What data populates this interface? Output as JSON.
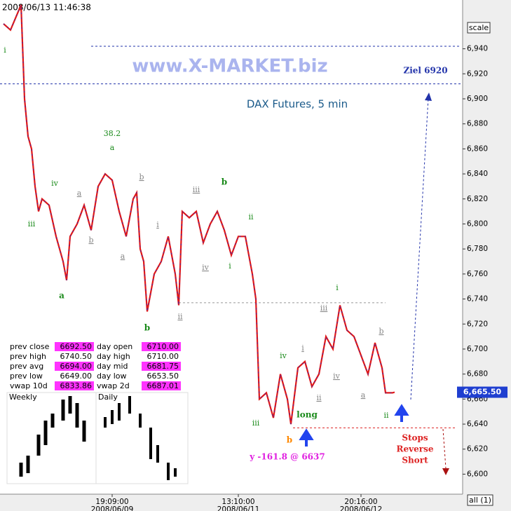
{
  "chart_data": {
    "type": "line",
    "title": "2008/06/13 11:46:38",
    "watermark": "www.X-MARKET.biz",
    "subtitle": "DAX Futures, 5 min",
    "target_label": "Ziel 6920",
    "scale_button": "scale",
    "all_button": "all (1)",
    "last_price_label": "6,665.50",
    "last_price": 6665.5,
    "stops_note": [
      "Stops",
      "Reverse",
      "Short"
    ],
    "projection_note": "y -161.8 @ 6637",
    "series": [
      {
        "name": "DAX Futures",
        "color": "#e01818",
        "x": [
          1,
          3,
          6,
          7,
          8,
          9,
          10,
          11,
          12,
          14,
          16,
          18,
          19,
          20,
          22,
          24,
          26,
          28,
          30,
          32,
          34,
          36,
          38,
          39,
          40,
          41,
          42,
          44,
          46,
          48,
          50,
          51,
          52,
          54,
          56,
          58,
          60,
          62,
          64,
          66,
          68,
          70,
          72,
          73,
          74,
          76,
          78,
          80,
          82,
          83,
          85,
          87,
          89,
          91,
          93,
          95,
          97,
          99,
          101,
          103,
          105,
          107,
          109,
          110,
          112,
          112.6
        ],
        "values": [
          6960,
          6955,
          6975,
          6900,
          6870,
          6860,
          6830,
          6810,
          6820,
          6815,
          6790,
          6770,
          6755,
          6790,
          6800,
          6815,
          6795,
          6830,
          6840,
          6835,
          6810,
          6790,
          6820,
          6825,
          6780,
          6770,
          6730,
          6760,
          6770,
          6790,
          6760,
          6735,
          6810,
          6805,
          6810,
          6785,
          6800,
          6810,
          6795,
          6775,
          6790,
          6790,
          6760,
          6740,
          6660,
          6665,
          6645,
          6680,
          6660,
          6640,
          6685,
          6690,
          6670,
          6680,
          6710,
          6700,
          6735,
          6715,
          6710,
          6695,
          6680,
          6705,
          6685,
          6665,
          6665,
          6665.5
        ]
      }
    ],
    "levels": [
      {
        "value": 6942,
        "color": "#2233aa"
      },
      {
        "value": 6912,
        "color": "#2233aa"
      },
      {
        "value": 6737,
        "color": "#999999"
      },
      {
        "value": 6637,
        "color": "#dd2222"
      }
    ],
    "annotations": [
      "i",
      "iv",
      "iii",
      "a",
      "a",
      "b",
      "38.2",
      "a",
      "b",
      "a",
      "i",
      "b",
      "ii",
      "iii",
      "b",
      "iv",
      "i",
      "ii",
      "iii",
      "iv",
      "b",
      "long",
      "i",
      "ii",
      "iii",
      "i",
      "iv",
      "a",
      "b",
      "ii"
    ],
    "annotation_colors": [
      "#1a8a1a",
      "#1a8a1a",
      "#1a8a1a",
      "#1a8a1a",
      "#888888",
      "#888888",
      "#1a8a1a",
      "#1a8a1a",
      "#888888",
      "#888888",
      "#888888",
      "#1a8a1a",
      "#888888",
      "#888888",
      "#1a8a1a",
      "#888888",
      "#1a8a1a",
      "#1a8a1a",
      "#1a8a1a",
      "#1a8a1a",
      "#ff8800",
      "#1a8a1a",
      "#888888",
      "#888888",
      "#888888",
      "#1a8a1a",
      "#888888",
      "#888888",
      "#888888",
      "#1a8a1a"
    ],
    "xlim": [
      0,
      132
    ],
    "ylim": [
      6584,
      6979
    ],
    "yticks": [
      {
        "value": 6600,
        "label": "6,600"
      },
      {
        "value": 6620,
        "label": "6,620"
      },
      {
        "value": 6640,
        "label": "6,640"
      },
      {
        "value": 6660,
        "label": "6,660"
      },
      {
        "value": 6680,
        "label": "6,680"
      },
      {
        "value": 6700,
        "label": "6,700"
      },
      {
        "value": 6720,
        "label": "6,720"
      },
      {
        "value": 6740,
        "label": "6,740"
      },
      {
        "value": 6760,
        "label": "6,760"
      },
      {
        "value": 6780,
        "label": "6,780"
      },
      {
        "value": 6800,
        "label": "6,800"
      },
      {
        "value": 6820,
        "label": "6,820"
      },
      {
        "value": 6840,
        "label": "6,840"
      },
      {
        "value": 6860,
        "label": "6,860"
      },
      {
        "value": 6880,
        "label": "6,880"
      },
      {
        "value": 6900,
        "label": "6,900"
      },
      {
        "value": 6920,
        "label": "6,920"
      },
      {
        "value": 6940,
        "label": "6,940"
      }
    ],
    "xticks": [
      {
        "value": 32,
        "label": "19:09:00"
      },
      {
        "value": 68,
        "label": "13:10:00"
      },
      {
        "value": 103,
        "label": "20:16:00"
      }
    ],
    "xtick_dates": [
      "2008/06/09",
      "2008/06/11",
      "2008/06/12"
    ],
    "info_table": [
      [
        "prev close",
        "6692.50",
        "day open",
        "6710.00"
      ],
      [
        "prev high",
        "6740.50",
        "day high",
        "6710.00"
      ],
      [
        "prev avg",
        "6694.00",
        "day mid",
        "6681.75"
      ],
      [
        "prev low",
        "6649.00",
        "day low",
        "6653.50"
      ],
      [
        "vwap 10d",
        "6833.86",
        "vwap 2d",
        "6687.01"
      ]
    ],
    "mini_charts": [
      "Weekly",
      "Daily"
    ]
  }
}
